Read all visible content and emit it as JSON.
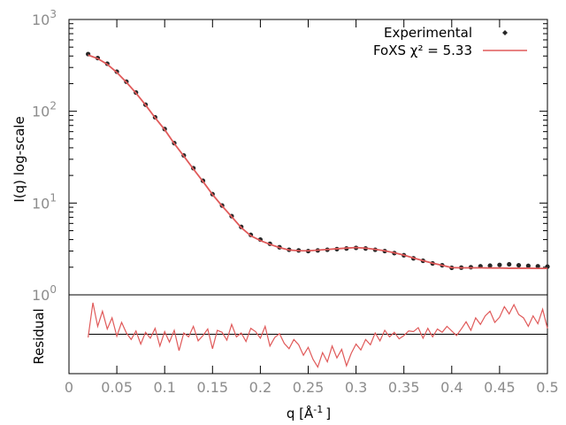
{
  "chart_data": [
    {
      "type": "scatter+line",
      "panel": "main",
      "ylabel": "I(q) log-scale",
      "yscale": "log",
      "ylim": [
        1,
        1000
      ],
      "xlim": [
        0,
        0.5
      ],
      "y_tick_labels": [
        {
          "base": "10",
          "exp": "0"
        },
        {
          "base": "10",
          "exp": "1"
        },
        {
          "base": "10",
          "exp": "2"
        },
        {
          "base": "10",
          "exp": "3"
        }
      ],
      "legend_position": "top-right",
      "series": [
        {
          "name": "Experimental",
          "kind": "points",
          "color": "#262626",
          "x": [
            0.02,
            0.03,
            0.04,
            0.05,
            0.06,
            0.07,
            0.08,
            0.09,
            0.1,
            0.11,
            0.12,
            0.13,
            0.14,
            0.15,
            0.16,
            0.17,
            0.18,
            0.19,
            0.2,
            0.21,
            0.22,
            0.23,
            0.24,
            0.25,
            0.26,
            0.27,
            0.28,
            0.29,
            0.3,
            0.31,
            0.32,
            0.33,
            0.34,
            0.35,
            0.36,
            0.37,
            0.38,
            0.39,
            0.4,
            0.41,
            0.42,
            0.43,
            0.44,
            0.45,
            0.46,
            0.47,
            0.48,
            0.49,
            0.5
          ],
          "y": [
            420,
            380,
            330,
            270,
            210,
            160,
            118,
            86,
            64,
            45,
            33,
            24,
            17.5,
            12.5,
            9.4,
            7.2,
            5.5,
            4.5,
            4.0,
            3.6,
            3.3,
            3.1,
            3.05,
            3.0,
            3.05,
            3.1,
            3.15,
            3.2,
            3.25,
            3.2,
            3.1,
            3.0,
            2.85,
            2.7,
            2.5,
            2.35,
            2.2,
            2.1,
            1.97,
            1.98,
            2.0,
            2.05,
            2.08,
            2.12,
            2.15,
            2.1,
            2.07,
            2.05,
            2.03
          ]
        },
        {
          "name": "FoXS χ² = 5.33",
          "kind": "line",
          "color": "#e05a5a",
          "x": [
            0.02,
            0.03,
            0.04,
            0.05,
            0.06,
            0.07,
            0.08,
            0.09,
            0.1,
            0.11,
            0.12,
            0.13,
            0.14,
            0.15,
            0.16,
            0.17,
            0.18,
            0.19,
            0.2,
            0.21,
            0.22,
            0.23,
            0.24,
            0.25,
            0.26,
            0.27,
            0.28,
            0.29,
            0.3,
            0.31,
            0.32,
            0.33,
            0.34,
            0.35,
            0.36,
            0.37,
            0.38,
            0.39,
            0.4,
            0.41,
            0.42,
            0.43,
            0.44,
            0.45,
            0.46,
            0.47,
            0.48,
            0.49,
            0.5
          ],
          "y": [
            410,
            375,
            325,
            265,
            207,
            158,
            117,
            85,
            63,
            44.5,
            32.5,
            23.5,
            17.2,
            12.4,
            9.3,
            7.1,
            5.4,
            4.4,
            3.9,
            3.55,
            3.27,
            3.08,
            3.03,
            3.02,
            3.07,
            3.12,
            3.18,
            3.23,
            3.27,
            3.23,
            3.13,
            3.02,
            2.87,
            2.71,
            2.52,
            2.36,
            2.21,
            2.1,
            1.98,
            1.97,
            1.97,
            1.97,
            1.96,
            1.96,
            1.95,
            1.95,
            1.95,
            1.94,
            1.94
          ]
        }
      ]
    },
    {
      "type": "line",
      "panel": "residual",
      "ylabel": "Residual",
      "xlabel_base": "q [Å",
      "xlabel_exp": "-1",
      "xlabel_close": "]",
      "xlim": [
        0,
        0.5
      ],
      "ylim": [
        -6,
        6
      ],
      "x_tick_labels": [
        "0",
        "0.05",
        "0.1",
        "0.15",
        "0.2",
        "0.25",
        "0.3",
        "0.35",
        "0.4",
        "0.45",
        "0.5"
      ],
      "zero_line_color": "#000000",
      "series": [
        {
          "color": "#e05a5a",
          "x": [
            0.02,
            0.025,
            0.03,
            0.035,
            0.04,
            0.045,
            0.05,
            0.055,
            0.06,
            0.065,
            0.07,
            0.075,
            0.08,
            0.085,
            0.09,
            0.095,
            0.1,
            0.105,
            0.11,
            0.115,
            0.12,
            0.125,
            0.13,
            0.135,
            0.14,
            0.145,
            0.15,
            0.155,
            0.16,
            0.165,
            0.17,
            0.175,
            0.18,
            0.185,
            0.19,
            0.195,
            0.2,
            0.205,
            0.21,
            0.215,
            0.22,
            0.225,
            0.23,
            0.235,
            0.24,
            0.245,
            0.25,
            0.255,
            0.26,
            0.265,
            0.27,
            0.275,
            0.28,
            0.285,
            0.29,
            0.295,
            0.3,
            0.305,
            0.31,
            0.315,
            0.32,
            0.325,
            0.33,
            0.335,
            0.34,
            0.345,
            0.35,
            0.355,
            0.36,
            0.365,
            0.37,
            0.375,
            0.38,
            0.385,
            0.39,
            0.395,
            0.4,
            0.405,
            0.41,
            0.415,
            0.42,
            0.425,
            0.43,
            0.435,
            0.44,
            0.445,
            0.45,
            0.455,
            0.46,
            0.465,
            0.47,
            0.475,
            0.48,
            0.485,
            0.49,
            0.495,
            0.5
          ],
          "y": [
            -0.5,
            4.8,
            1.2,
            3.5,
            0.8,
            2.5,
            -0.3,
            1.8,
            0.2,
            -0.8,
            0.5,
            -1.5,
            0.3,
            -0.6,
            0.9,
            -1.8,
            0.4,
            -1.2,
            0.6,
            -2.5,
            0.2,
            -0.4,
            1.2,
            -1.0,
            -0.2,
            0.8,
            -2.2,
            0.6,
            0.3,
            -0.9,
            1.5,
            -0.4,
            0.2,
            -1.1,
            0.9,
            0.4,
            -0.6,
            1.2,
            -1.8,
            -0.5,
            0.1,
            -1.4,
            -2.2,
            -0.8,
            -1.6,
            -3.2,
            -2.0,
            -3.8,
            -5.0,
            -2.8,
            -4.2,
            -1.8,
            -3.6,
            -2.3,
            -4.8,
            -2.9,
            -1.5,
            -2.4,
            -0.8,
            -1.6,
            0.2,
            -1.0,
            0.6,
            -0.4,
            0.3,
            -0.7,
            -0.2,
            0.5,
            0.4,
            1.0,
            -0.6,
            0.9,
            -0.4,
            0.8,
            0.3,
            1.2,
            0.5,
            -0.2,
            0.8,
            1.9,
            0.6,
            2.5,
            1.5,
            2.8,
            3.5,
            1.8,
            2.6,
            4.2,
            3.1,
            4.5,
            3.0,
            2.5,
            1.2,
            2.8,
            1.6,
            3.8,
            0.9
          ]
        }
      ]
    }
  ]
}
